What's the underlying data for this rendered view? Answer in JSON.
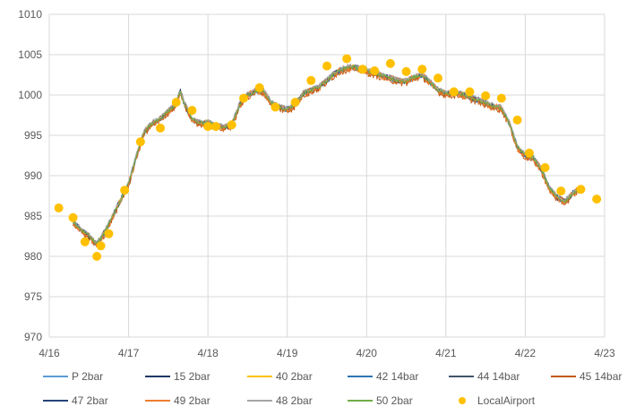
{
  "chart_data": {
    "type": "line",
    "title": "",
    "xlabel": "",
    "ylabel": "",
    "x_tick_labels": [
      "4/16",
      "4/17",
      "4/18",
      "4/19",
      "4/20",
      "4/21",
      "4/22",
      "4/23"
    ],
    "x_tick_values": [
      0,
      1,
      2,
      3,
      4,
      5,
      6,
      7
    ],
    "y_tick_labels": [
      "970",
      "975",
      "980",
      "985",
      "990",
      "995",
      "1000",
      "1005",
      "1010"
    ],
    "ylim": [
      970,
      1010
    ],
    "grid": "vertical and horizontal",
    "legend": "bottom",
    "base_curve": {
      "x": [
        0.3,
        0.4,
        0.5,
        0.6,
        0.7,
        0.8,
        0.9,
        1.0,
        1.1,
        1.2,
        1.3,
        1.4,
        1.5,
        1.6,
        1.65,
        1.7,
        1.75,
        1.8,
        1.9,
        2.0,
        2.1,
        2.2,
        2.3,
        2.4,
        2.5,
        2.6,
        2.7,
        2.8,
        2.9,
        3.0,
        3.1,
        3.2,
        3.3,
        3.4,
        3.5,
        3.6,
        3.7,
        3.8,
        3.9,
        4.0,
        4.1,
        4.2,
        4.3,
        4.4,
        4.5,
        4.6,
        4.7,
        4.8,
        4.9,
        5.0,
        5.1,
        5.2,
        5.3,
        5.4,
        5.5,
        5.6,
        5.7,
        5.8,
        5.9,
        6.0,
        6.1,
        6.2,
        6.3,
        6.4,
        6.5,
        6.6,
        6.7
      ],
      "y": [
        984.2,
        983.3,
        982.5,
        981.5,
        983.0,
        985.0,
        987.0,
        989.0,
        992.5,
        995.5,
        996.5,
        997.0,
        998.0,
        998.8,
        1000.5,
        999.0,
        998.0,
        997.0,
        996.5,
        996.6,
        996.2,
        996.0,
        996.3,
        998.8,
        1000.0,
        1000.5,
        1000.5,
        999.0,
        998.5,
        998.2,
        998.8,
        1000.2,
        1000.6,
        1001.0,
        1001.8,
        1002.7,
        1003.2,
        1003.5,
        1003.3,
        1003.0,
        1002.7,
        1002.4,
        1002.1,
        1001.8,
        1001.7,
        1002.2,
        1002.5,
        1001.6,
        1000.6,
        1000.2,
        1000.2,
        1000.1,
        999.7,
        999.4,
        999.0,
        998.6,
        998.4,
        996.5,
        993.5,
        992.5,
        992.2,
        990.8,
        988.5,
        987.3,
        986.8,
        987.8,
        988.5
      ]
    },
    "series": [
      {
        "name": "P 2bar",
        "color": "#5B9BD5",
        "offset": 0.0
      },
      {
        "name": "15 2bar",
        "color": "#203864",
        "offset": -0.1
      },
      {
        "name": "40 2bar",
        "color": "#FFC000",
        "offset": 0.1
      },
      {
        "name": "42 14bar",
        "color": "#2E75B6",
        "offset": -0.15
      },
      {
        "name": "44 14bar",
        "color": "#44546A",
        "offset": 0.05
      },
      {
        "name": "45 14bar",
        "color": "#C55A11",
        "offset": -0.2
      },
      {
        "name": "47 2bar",
        "color": "#264478",
        "offset": 0.15
      },
      {
        "name": "49 2bar",
        "color": "#ED7D31",
        "offset": -0.05
      },
      {
        "name": "48 2bar",
        "color": "#A5A5A5",
        "offset": 0.2
      },
      {
        "name": "50 2bar",
        "color": "#70AD47",
        "offset": 0.0
      }
    ],
    "local_airport": {
      "name": "LocalAirport",
      "color": "#FFC000",
      "x": [
        0.12,
        0.3,
        0.45,
        0.6,
        0.65,
        0.75,
        0.95,
        1.15,
        1.4,
        1.6,
        1.8,
        2.0,
        2.1,
        2.3,
        2.45,
        2.65,
        2.85,
        3.1,
        3.3,
        3.5,
        3.75,
        3.95,
        4.1,
        4.3,
        4.5,
        4.7,
        4.9,
        5.1,
        5.3,
        5.5,
        5.7,
        5.9,
        6.05,
        6.25,
        6.45,
        6.7,
        6.9
      ],
      "y": [
        986.0,
        984.8,
        981.8,
        980.0,
        981.3,
        982.8,
        988.2,
        994.2,
        995.9,
        999.1,
        998.1,
        996.1,
        996.1,
        996.3,
        999.6,
        1000.9,
        998.5,
        999.1,
        1001.8,
        1003.6,
        1004.5,
        1003.2,
        1003.0,
        1003.9,
        1002.9,
        1003.2,
        1002.1,
        1000.4,
        1000.4,
        999.9,
        999.6,
        996.9,
        992.8,
        991.0,
        988.1,
        988.3,
        987.1
      ]
    }
  }
}
